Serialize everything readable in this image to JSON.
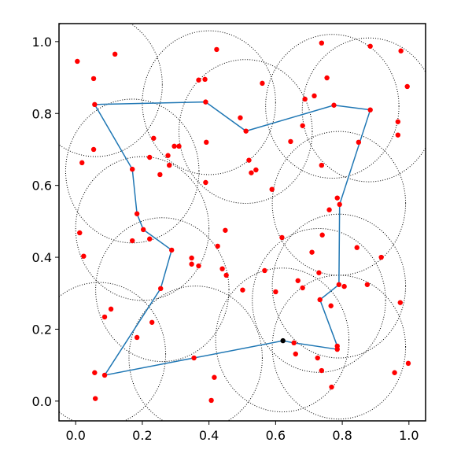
{
  "chart_data": {
    "type": "scatter",
    "xlim": [
      -0.05,
      1.05
    ],
    "ylim": [
      -0.055,
      1.05
    ],
    "xticks": [
      {
        "value": 0,
        "label": "0.0"
      },
      {
        "value": 0.2,
        "label": "0.2"
      },
      {
        "value": 0.4,
        "label": "0.4"
      },
      {
        "value": 0.6,
        "label": "0.6"
      },
      {
        "value": 0.8,
        "label": "0.8"
      },
      {
        "value": 1,
        "label": "1.0"
      }
    ],
    "yticks": [
      {
        "value": 0,
        "label": "0.0"
      },
      {
        "value": 0.2,
        "label": "0.2"
      },
      {
        "value": 0.4,
        "label": "0.4"
      },
      {
        "value": 0.6,
        "label": "0.6"
      },
      {
        "value": 0.8,
        "label": "0.8"
      },
      {
        "value": 1,
        "label": "1.0"
      }
    ],
    "circles": {
      "color": "#000000",
      "x": [
        0.06,
        0.4,
        0.51,
        0.77,
        0.88,
        0.79,
        0.79,
        0.73,
        0.79,
        0.62,
        0.36,
        0.07,
        0.26,
        0.2,
        0.17
      ],
      "y": [
        0.88,
        0.83,
        0.75,
        0.82,
        0.81,
        0.55,
        0.32,
        0.28,
        0.15,
        0.17,
        0.12,
        0.13,
        0.31,
        0.48,
        0.64
      ],
      "r": [
        0.2,
        0.2,
        0.2,
        0.2,
        0.2,
        0.2,
        0.2,
        0.2,
        0.2,
        0.2,
        0.2,
        0.2,
        0.2,
        0.2,
        0.2
      ]
    },
    "path": {
      "color": "#1f77b4",
      "x": [
        0.057,
        0.39,
        0.511,
        0.775,
        0.884,
        0.792,
        0.79,
        0.733,
        0.785,
        0.785,
        0.655,
        0.622,
        0.355,
        0.087,
        0.255,
        0.288,
        0.203,
        0.184,
        0.17,
        0.057
      ],
      "y": [
        0.825,
        0.832,
        0.751,
        0.823,
        0.81,
        0.547,
        0.324,
        0.282,
        0.153,
        0.144,
        0.162,
        0.168,
        0.12,
        0.072,
        0.313,
        0.42,
        0.477,
        0.521,
        0.645,
        0.825
      ]
    },
    "points": {
      "color": "#ff0000",
      "x": [
        0.005,
        0.118,
        0.054,
        0.423,
        0.369,
        0.388,
        0.738,
        0.884,
        0.976,
        0.754,
        0.995,
        0.56,
        0.688,
        0.716,
        0.494,
        0.967,
        0.967,
        0.681,
        0.234,
        0.645,
        0.392,
        0.849,
        0.054,
        0.019,
        0.222,
        0.277,
        0.296,
        0.31,
        0.52,
        0.281,
        0.541,
        0.527,
        0.738,
        0.253,
        0.39,
        0.589,
        0.785,
        0.761,
        0.012,
        0.449,
        0.426,
        0.619,
        0.74,
        0.844,
        0.222,
        0.17,
        0.024,
        0.917,
        0.709,
        0.348,
        0.348,
        0.369,
        0.44,
        0.452,
        0.567,
        0.73,
        0.806,
        0.875,
        0.667,
        0.681,
        0.501,
        0.6,
        0.766,
        0.974,
        0.106,
        0.087,
        0.229,
        0.184,
        0.66,
        0.726,
        0.738,
        0.998,
        0.957,
        0.057,
        0.416,
        0.768,
        0.059,
        0.407,
        0.057,
        0.39,
        0.511,
        0.775,
        0.884,
        0.792,
        0.79,
        0.733,
        0.785,
        0.785,
        0.655,
        0.355,
        0.087,
        0.255,
        0.288,
        0.203,
        0.184,
        0.17
      ],
      "y": [
        0.945,
        0.965,
        0.897,
        0.978,
        0.893,
        0.895,
        0.996,
        0.987,
        0.974,
        0.899,
        0.875,
        0.884,
        0.84,
        0.849,
        0.788,
        0.777,
        0.74,
        0.766,
        0.731,
        0.722,
        0.72,
        0.72,
        0.7,
        0.663,
        0.678,
        0.683,
        0.709,
        0.709,
        0.67,
        0.656,
        0.643,
        0.635,
        0.656,
        0.63,
        0.608,
        0.589,
        0.565,
        0.532,
        0.468,
        0.475,
        0.431,
        0.455,
        0.462,
        0.427,
        0.451,
        0.446,
        0.403,
        0.4,
        0.414,
        0.398,
        0.381,
        0.376,
        0.368,
        0.35,
        0.363,
        0.357,
        0.319,
        0.324,
        0.335,
        0.315,
        0.309,
        0.304,
        0.265,
        0.274,
        0.256,
        0.234,
        0.219,
        0.177,
        0.131,
        0.12,
        0.085,
        0.105,
        0.079,
        0.079,
        0.066,
        0.039,
        0.007,
        0.002,
        0.825,
        0.832,
        0.751,
        0.823,
        0.81,
        0.547,
        0.324,
        0.282,
        0.153,
        0.144,
        0.162,
        0.12,
        0.072,
        0.313,
        0.42,
        0.477,
        0.521,
        0.645
      ]
    },
    "highlight": {
      "color": "#000000",
      "x": 0.622,
      "y": 0.168
    }
  }
}
